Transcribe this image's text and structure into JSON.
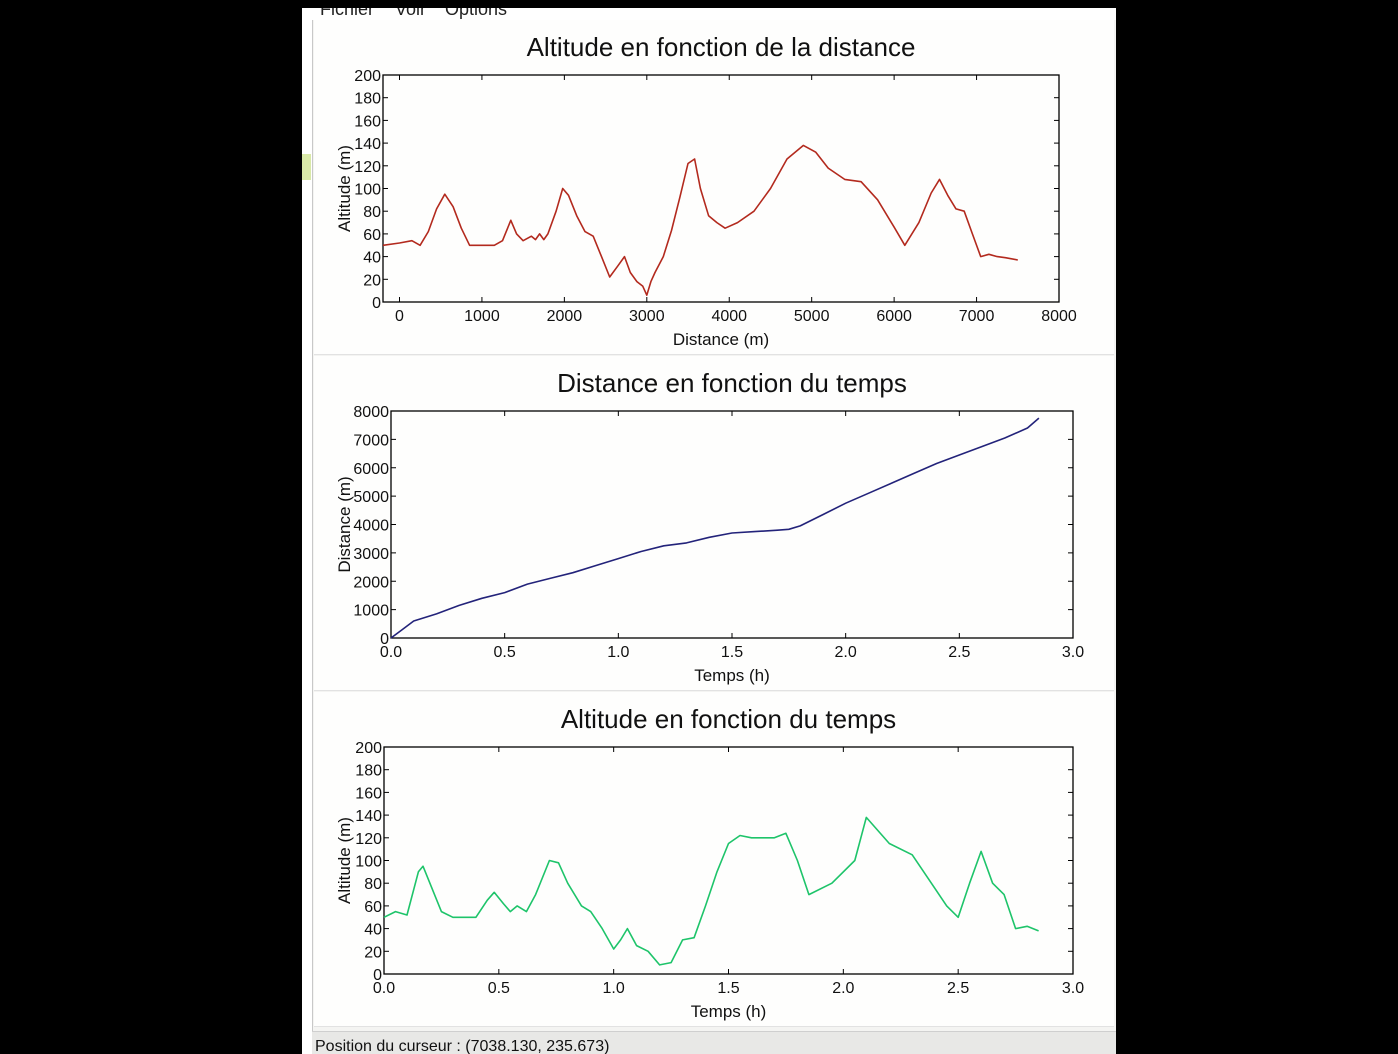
{
  "menu": {
    "items": [
      "Fichier",
      "Voir",
      "Options"
    ]
  },
  "status": {
    "cursor_label": "Position du curseur : (7038.130, 235.673)"
  },
  "chart_data": [
    {
      "type": "line",
      "title": "Altitude en fonction de la distance",
      "xlabel": "Distance (m)",
      "ylabel": "Altitude (m)",
      "xlim": [
        -200,
        8000
      ],
      "ylim": [
        0,
        200
      ],
      "xticks": [
        0,
        1000,
        2000,
        3000,
        4000,
        5000,
        6000,
        7000,
        8000
      ],
      "xtick_labels": [
        "0",
        "1000",
        "2000",
        "3000",
        "4000",
        "5000",
        "6000",
        "7000",
        "8000"
      ],
      "yticks": [
        0,
        20,
        40,
        60,
        80,
        100,
        120,
        140,
        160,
        180,
        200
      ],
      "ytick_labels": [
        "0",
        "20",
        "40",
        "60",
        "80",
        "100",
        "120",
        "140",
        "160",
        "180",
        "200"
      ],
      "grid": false,
      "series": [
        {
          "color": "#b32a1e",
          "x": [
            -200,
            0,
            150,
            250,
            350,
            450,
            550,
            650,
            750,
            850,
            950,
            1050,
            1150,
            1250,
            1350,
            1420,
            1500,
            1600,
            1650,
            1700,
            1750,
            1800,
            1900,
            1980,
            2050,
            2150,
            2250,
            2350,
            2450,
            2550,
            2650,
            2730,
            2800,
            2880,
            2950,
            3000,
            3050,
            3100,
            3200,
            3300,
            3400,
            3500,
            3580,
            3650,
            3750,
            3850,
            3950,
            4100,
            4300,
            4500,
            4700,
            4900,
            5050,
            5200,
            5400,
            5600,
            5800,
            6000,
            6130,
            6300,
            6450,
            6550,
            6650,
            6750,
            6850,
            6950,
            7050,
            7150,
            7250,
            7350,
            7500
          ],
          "y": [
            50,
            52,
            54,
            50,
            62,
            82,
            95,
            84,
            65,
            50,
            50,
            50,
            50,
            54,
            72,
            60,
            54,
            58,
            55,
            60,
            55,
            60,
            80,
            100,
            94,
            76,
            62,
            58,
            40,
            22,
            32,
            40,
            26,
            18,
            14,
            6,
            18,
            26,
            40,
            63,
            92,
            122,
            126,
            100,
            76,
            70,
            65,
            70,
            80,
            100,
            126,
            138,
            132,
            118,
            108,
            106,
            90,
            66,
            50,
            70,
            96,
            108,
            94,
            82,
            80,
            60,
            40,
            42,
            40,
            39,
            37
          ]
        }
      ]
    },
    {
      "type": "line",
      "title": "Distance en fonction du temps",
      "xlabel": "Temps (h)",
      "ylabel": "Distance (m)",
      "xlim": [
        0,
        3.0
      ],
      "ylim": [
        0,
        8000
      ],
      "xticks": [
        0.0,
        0.5,
        1.0,
        1.5,
        2.0,
        2.5,
        3.0
      ],
      "xtick_labels": [
        "0.0",
        "0.5",
        "1.0",
        "1.5",
        "2.0",
        "2.5",
        "3.0"
      ],
      "yticks": [
        0,
        1000,
        2000,
        3000,
        4000,
        5000,
        6000,
        7000,
        8000
      ],
      "ytick_labels": [
        "0",
        "1000",
        "2000",
        "3000",
        "4000",
        "5000",
        "6000",
        "7000",
        "8000"
      ],
      "grid": false,
      "series": [
        {
          "color": "#23237a",
          "x": [
            0,
            0.05,
            0.1,
            0.2,
            0.3,
            0.4,
            0.5,
            0.6,
            0.7,
            0.8,
            0.9,
            1.0,
            1.1,
            1.2,
            1.3,
            1.4,
            1.5,
            1.6,
            1.7,
            1.75,
            1.8,
            1.9,
            2.0,
            2.1,
            2.2,
            2.3,
            2.4,
            2.5,
            2.6,
            2.7,
            2.8,
            2.85
          ],
          "y": [
            0,
            300,
            600,
            850,
            1150,
            1400,
            1600,
            1900,
            2100,
            2300,
            2550,
            2800,
            3050,
            3250,
            3350,
            3550,
            3700,
            3750,
            3800,
            3830,
            3950,
            4350,
            4750,
            5100,
            5450,
            5800,
            6150,
            6450,
            6750,
            7050,
            7400,
            7750
          ]
        }
      ]
    },
    {
      "type": "line",
      "title": "Altitude en fonction du temps",
      "xlabel": "Temps (h)",
      "ylabel": "Altitude (m)",
      "xlim": [
        0,
        3.0
      ],
      "ylim": [
        0,
        200
      ],
      "xticks": [
        0.0,
        0.5,
        1.0,
        1.5,
        2.0,
        2.5,
        3.0
      ],
      "xtick_labels": [
        "0.0",
        "0.5",
        "1.0",
        "1.5",
        "2.0",
        "2.5",
        "3.0"
      ],
      "yticks": [
        0,
        20,
        40,
        60,
        80,
        100,
        120,
        140,
        160,
        180,
        200
      ],
      "ytick_labels": [
        "0",
        "20",
        "40",
        "60",
        "80",
        "100",
        "120",
        "140",
        "160",
        "180",
        "200"
      ],
      "grid": false,
      "series": [
        {
          "color": "#1ec46a",
          "x": [
            0,
            0.05,
            0.1,
            0.15,
            0.17,
            0.2,
            0.25,
            0.3,
            0.35,
            0.4,
            0.45,
            0.48,
            0.52,
            0.55,
            0.58,
            0.62,
            0.66,
            0.72,
            0.76,
            0.8,
            0.86,
            0.9,
            0.95,
            1.0,
            1.03,
            1.06,
            1.1,
            1.15,
            1.2,
            1.25,
            1.3,
            1.35,
            1.4,
            1.45,
            1.5,
            1.55,
            1.6,
            1.65,
            1.7,
            1.75,
            1.8,
            1.85,
            1.95,
            2.05,
            2.1,
            2.2,
            2.3,
            2.35,
            2.45,
            2.5,
            2.55,
            2.6,
            2.65,
            2.7,
            2.75,
            2.8,
            2.85
          ],
          "y": [
            50,
            55,
            52,
            90,
            95,
            80,
            55,
            50,
            50,
            50,
            65,
            72,
            62,
            55,
            60,
            55,
            70,
            100,
            98,
            80,
            60,
            55,
            40,
            22,
            30,
            40,
            25,
            20,
            8,
            10,
            30,
            32,
            60,
            90,
            115,
            122,
            120,
            120,
            120,
            124,
            100,
            70,
            80,
            100,
            138,
            115,
            105,
            90,
            60,
            50,
            80,
            108,
            80,
            70,
            40,
            42,
            38
          ]
        }
      ]
    }
  ]
}
